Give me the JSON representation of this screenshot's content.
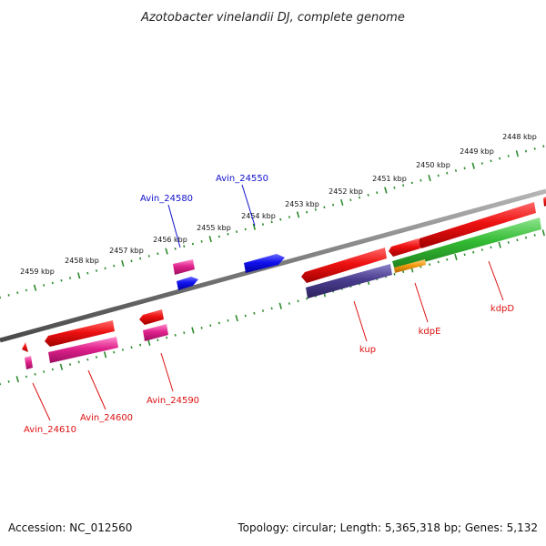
{
  "title": "Azotobacter vinelandii DJ, complete genome",
  "footer": {
    "accession": "Accession: NC_012560",
    "topology": "Topology: circular; Length: 5,365,318 bp; Genes: 5,132"
  },
  "colors": {
    "backbone": "#7a7a7a",
    "ticks": "#2e8b2e",
    "red_gene": "#ee1111",
    "magenta_gene": "#e0228c",
    "blue_gene": "#1111ee",
    "indigo_gene": "#4a3d8f",
    "green_gene": "#33bb33",
    "orange_gene": "#f39a10",
    "label_red": "#dd1111",
    "label_blue": "#1111cc"
  },
  "kbp_labels": [
    "2448 kbp",
    "2449 kbp",
    "2450 kbp",
    "2451 kbp",
    "2452 kbp",
    "2453 kbp",
    "2454 kbp",
    "2455 kbp",
    "2456 kbp",
    "2457 kbp",
    "2458 kbp",
    "2459 kbp"
  ],
  "gene_labels": {
    "avin_24550": "Avin_24550",
    "avin_24580": "Avin_24580",
    "avin_24590": "Avin_24590",
    "avin_24600": "Avin_24600",
    "avin_24610": "Avin_24610",
    "kup": "kup",
    "kdpE": "kdpE",
    "kdpD": "kdpD"
  }
}
